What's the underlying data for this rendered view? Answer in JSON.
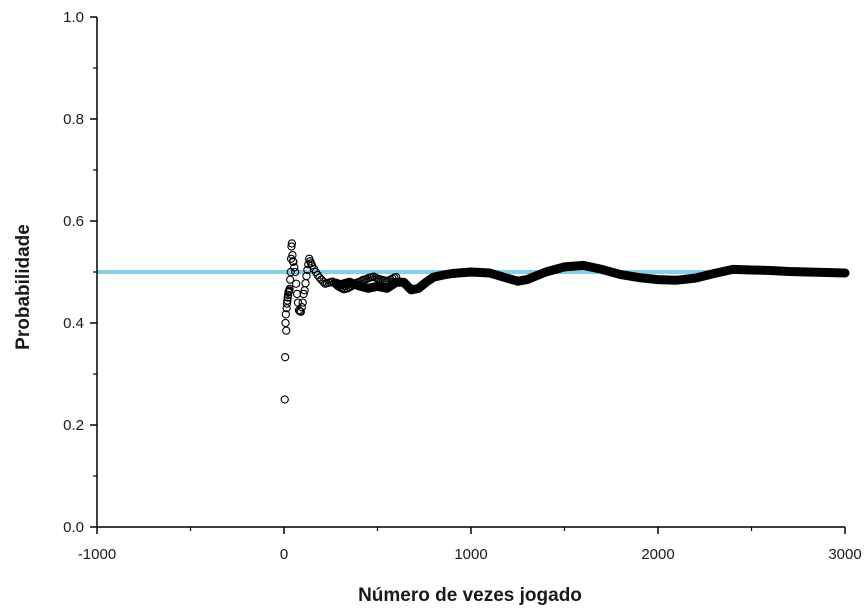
{
  "chart_data": {
    "type": "scatter",
    "title": "",
    "xlabel": "Número de vezes jogado",
    "ylabel": "Probabilidade",
    "xlim": [
      -1000,
      3000
    ],
    "ylim": [
      0.0,
      1.0
    ],
    "xticks": [
      -1000,
      0,
      1000,
      2000,
      3000
    ],
    "xtick_labels": [
      "-1000",
      "0",
      "1000",
      "2000",
      "3000"
    ],
    "yticks": [
      0.0,
      0.2,
      0.4,
      0.6,
      0.8,
      1.0
    ],
    "ytick_labels": [
      "0.0",
      "0.2",
      "0.4",
      "0.6",
      "0.8",
      "1.0"
    ],
    "grid": false,
    "reference_line": {
      "y": 0.5,
      "color": "#87ceeb"
    },
    "series": [
      {
        "marker": "open-circle",
        "color": "#000000",
        "points": [
          [
            4,
            0.25
          ],
          [
            6,
            0.333
          ],
          [
            8,
            0.4
          ],
          [
            10,
            0.417
          ],
          [
            12,
            0.385
          ],
          [
            14,
            0.429
          ],
          [
            16,
            0.438
          ],
          [
            18,
            0.444
          ],
          [
            20,
            0.45
          ],
          [
            22,
            0.455
          ],
          [
            24,
            0.46
          ],
          [
            26,
            0.462
          ],
          [
            28,
            0.464
          ],
          [
            30,
            0.467
          ],
          [
            33,
            0.485
          ],
          [
            36,
            0.5
          ],
          [
            38,
            0.526
          ],
          [
            40,
            0.55
          ],
          [
            42,
            0.556
          ],
          [
            45,
            0.533
          ],
          [
            48,
            0.521
          ],
          [
            50,
            0.52
          ],
          [
            55,
            0.509
          ],
          [
            60,
            0.5
          ],
          [
            65,
            0.477
          ],
          [
            70,
            0.457
          ],
          [
            75,
            0.44
          ],
          [
            80,
            0.425
          ],
          [
            85,
            0.423
          ],
          [
            90,
            0.422
          ],
          [
            95,
            0.431
          ],
          [
            100,
            0.44
          ],
          [
            105,
            0.457
          ],
          [
            110,
            0.464
          ],
          [
            115,
            0.478
          ],
          [
            120,
            0.492
          ],
          [
            125,
            0.504
          ],
          [
            130,
            0.515
          ],
          [
            135,
            0.526
          ],
          [
            140,
            0.521
          ],
          [
            145,
            0.517
          ],
          [
            150,
            0.513
          ],
          [
            160,
            0.506
          ],
          [
            170,
            0.5
          ],
          [
            180,
            0.494
          ],
          [
            190,
            0.489
          ],
          [
            200,
            0.485
          ],
          [
            210,
            0.481
          ],
          [
            220,
            0.477
          ],
          [
            230,
            0.478
          ],
          [
            240,
            0.479
          ],
          [
            250,
            0.48
          ],
          [
            260,
            0.481
          ],
          [
            270,
            0.478
          ],
          [
            280,
            0.475
          ],
          [
            290,
            0.472
          ],
          [
            300,
            0.47
          ],
          [
            310,
            0.468
          ],
          [
            320,
            0.466
          ],
          [
            330,
            0.467
          ],
          [
            340,
            0.468
          ],
          [
            350,
            0.47
          ],
          [
            360,
            0.472
          ],
          [
            370,
            0.474
          ],
          [
            380,
            0.477
          ],
          [
            390,
            0.479
          ],
          [
            400,
            0.48
          ],
          [
            410,
            0.482
          ],
          [
            420,
            0.484
          ],
          [
            430,
            0.485
          ],
          [
            440,
            0.486
          ],
          [
            450,
            0.488
          ],
          [
            460,
            0.489
          ],
          [
            470,
            0.49
          ],
          [
            480,
            0.491
          ],
          [
            490,
            0.489
          ],
          [
            500,
            0.487
          ],
          [
            510,
            0.486
          ],
          [
            520,
            0.485
          ],
          [
            530,
            0.484
          ],
          [
            540,
            0.483
          ],
          [
            550,
            0.482
          ],
          [
            560,
            0.483
          ],
          [
            570,
            0.485
          ],
          [
            580,
            0.487
          ],
          [
            590,
            0.489
          ],
          [
            600,
            0.49
          ]
        ]
      },
      {
        "marker": "thick-line",
        "color": "#000000",
        "points": [
          [
            280,
            0.478
          ],
          [
            300,
            0.475
          ],
          [
            350,
            0.48
          ],
          [
            400,
            0.473
          ],
          [
            450,
            0.468
          ],
          [
            500,
            0.472
          ],
          [
            550,
            0.468
          ],
          [
            600,
            0.48
          ],
          [
            640,
            0.48
          ],
          [
            680,
            0.465
          ],
          [
            720,
            0.468
          ],
          [
            760,
            0.48
          ],
          [
            800,
            0.49
          ],
          [
            850,
            0.494
          ],
          [
            900,
            0.497
          ],
          [
            1000,
            0.5
          ],
          [
            1100,
            0.498
          ],
          [
            1200,
            0.487
          ],
          [
            1250,
            0.482
          ],
          [
            1300,
            0.485
          ],
          [
            1400,
            0.5
          ],
          [
            1500,
            0.51
          ],
          [
            1600,
            0.513
          ],
          [
            1700,
            0.505
          ],
          [
            1800,
            0.495
          ],
          [
            1900,
            0.489
          ],
          [
            2000,
            0.485
          ],
          [
            2100,
            0.484
          ],
          [
            2200,
            0.488
          ],
          [
            2300,
            0.497
          ],
          [
            2400,
            0.505
          ],
          [
            2500,
            0.504
          ],
          [
            2600,
            0.503
          ],
          [
            2700,
            0.501
          ],
          [
            2800,
            0.5
          ],
          [
            2900,
            0.499
          ],
          [
            3000,
            0.498
          ]
        ]
      }
    ]
  }
}
